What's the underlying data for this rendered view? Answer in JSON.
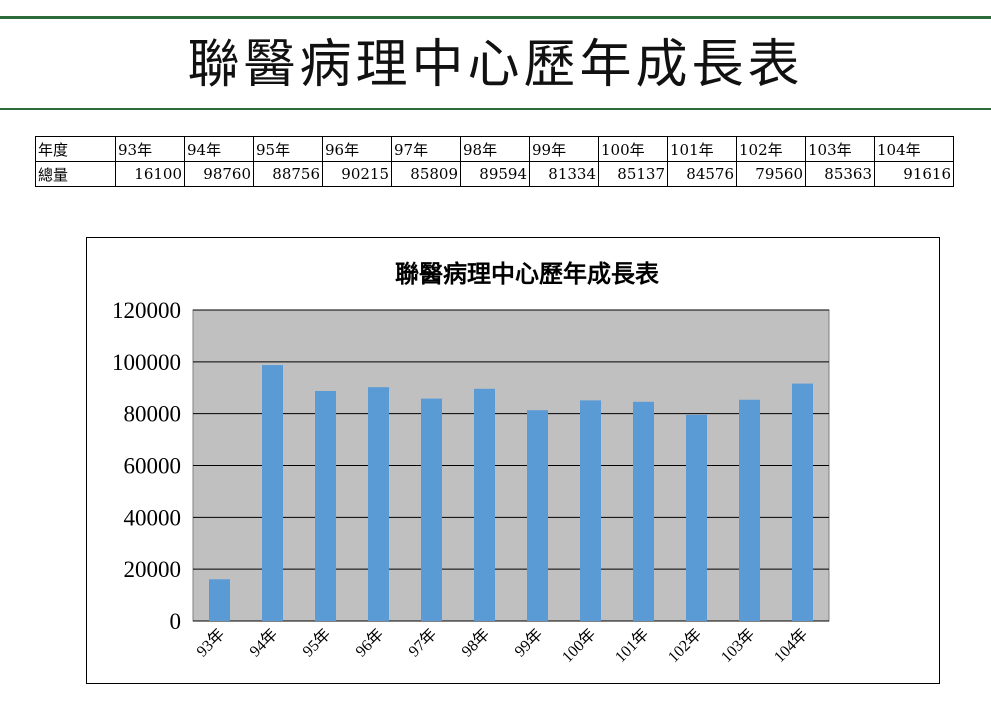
{
  "page": {
    "title": "聯醫病理中心歷年成長表"
  },
  "table": {
    "header_label": "年度",
    "value_label": "總量",
    "years": [
      "93年",
      "94年",
      "95年",
      "96年",
      "97年",
      "98年",
      "99年",
      "100年",
      "101年",
      "102年",
      "103年",
      "104年"
    ],
    "values": [
      "16100",
      "98760",
      "88756",
      "90215",
      "85809",
      "89594",
      "81334",
      "85137",
      "84576",
      "79560",
      "85363",
      "91616"
    ]
  },
  "colors": {
    "bar": "#5b9bd5",
    "plot_bg": "#c0c0c0",
    "rule": "#2e6b3a",
    "grid": "#000000"
  },
  "chart_data": {
    "type": "bar",
    "title": "聯醫病理中心歷年成長表",
    "categories": [
      "93年",
      "94年",
      "95年",
      "96年",
      "97年",
      "98年",
      "99年",
      "100年",
      "101年",
      "102年",
      "103年",
      "104年"
    ],
    "values": [
      16100,
      98760,
      88756,
      90215,
      85809,
      89594,
      81334,
      85137,
      84576,
      79560,
      85363,
      91616
    ],
    "ylim": [
      0,
      120000
    ],
    "yticks": [
      0,
      20000,
      40000,
      60000,
      80000,
      100000,
      120000
    ],
    "grid": true,
    "legend": "none"
  }
}
